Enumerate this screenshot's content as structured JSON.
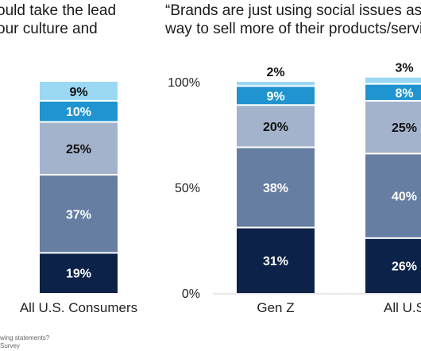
{
  "chart_data": [
    {
      "type": "bar",
      "stacked": true,
      "heading_lines": [
        "ould take the lead",
        "our culture and"
      ],
      "categories": [
        "All U.S. Consumers"
      ],
      "series": [
        {
          "values": [
            19
          ],
          "color": "#0c2248"
        },
        {
          "values": [
            37
          ],
          "color": "#667ea2"
        },
        {
          "values": [
            25
          ],
          "color": "#a4b3cc"
        },
        {
          "values": [
            10
          ],
          "color": "#1f94d0"
        },
        {
          "values": [
            9
          ],
          "color": "#9bd8f3"
        }
      ],
      "data_labels": [
        [
          "19%"
        ],
        [
          "37%"
        ],
        [
          "25%"
        ],
        [
          "10%"
        ],
        [
          "9%"
        ]
      ],
      "ylim": [
        0,
        100
      ]
    },
    {
      "type": "bar",
      "stacked": true,
      "heading_lines": [
        "“Brands are just using social issues as",
        "way to sell more of their products/servi"
      ],
      "categories": [
        "Gen Z",
        "All U.S"
      ],
      "yticks": [
        "0%",
        "50%",
        "100%"
      ],
      "series": [
        {
          "values": [
            31,
            26
          ],
          "color": "#0c2248"
        },
        {
          "values": [
            38,
            40
          ],
          "color": "#667ea2"
        },
        {
          "values": [
            20,
            25
          ],
          "color": "#a4b3cc"
        },
        {
          "values": [
            9,
            8
          ],
          "color": "#1f94d0"
        },
        {
          "values": [
            2,
            3
          ],
          "color": "#9bd8f3"
        }
      ],
      "data_labels": [
        [
          "31%",
          "26%"
        ],
        [
          "38%",
          "40%"
        ],
        [
          "20%",
          "25%"
        ],
        [
          "9%",
          "8%"
        ],
        [
          "2%",
          "3%"
        ]
      ],
      "ylim": [
        0,
        100
      ]
    }
  ],
  "footnote_lines": [
    "wing statements?",
    "Survey"
  ]
}
